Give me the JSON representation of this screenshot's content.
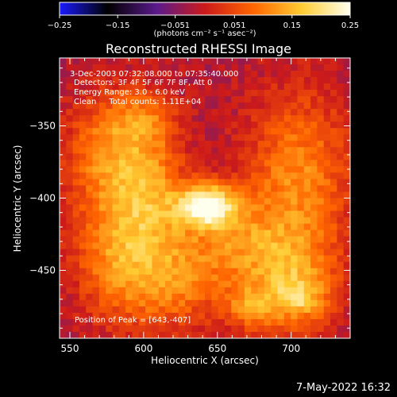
{
  "chart_data": {
    "type": "heatmap",
    "title": "Reconstructed RHESSI Image",
    "xlabel": "Heliocentric X (arcsec)",
    "ylabel": "Heliocentric Y (arcsec)",
    "xlim": [
      543,
      740
    ],
    "ylim": [
      -497,
      -303
    ],
    "x_ticks": [
      550,
      600,
      650,
      700
    ],
    "y_ticks": [
      -350,
      -400,
      -450
    ],
    "colorbar": {
      "label": "(photons cm⁻² s⁻¹ asec⁻²)",
      "range": [
        -0.25,
        0.25
      ],
      "ticks": [
        "-0.25",
        "-0.15",
        "-0.051",
        "0.051",
        "0.15",
        "0.25"
      ],
      "colors": [
        "#1a1aff",
        "#000000",
        "#5a1a8c",
        "#cc1a1a",
        "#ff6600",
        "#ffcc33",
        "#ffffee"
      ]
    },
    "annotations": [
      "3-Dec-2003 07:32:08.000 to 07:35:40.000",
      "Detectors: 3F 4F 5F 6F 7F 8F, Att 0",
      "Energy Range: 3.0 - 6.0 keV",
      "Clean     Total counts: 1.11E+04"
    ],
    "peak_label": "Position of Peak = [643,-407]",
    "peak": [
      643,
      -407
    ],
    "emission_sources": [
      {
        "x": 643,
        "y": -405,
        "amp": 0.26,
        "sx": 14,
        "sy": 10
      },
      {
        "x": 605,
        "y": -400,
        "amp": 0.13,
        "sx": 18,
        "sy": 32
      },
      {
        "x": 575,
        "y": -370,
        "amp": 0.12,
        "sx": 20,
        "sy": 30
      },
      {
        "x": 705,
        "y": -385,
        "amp": 0.13,
        "sx": 25,
        "sy": 40
      },
      {
        "x": 700,
        "y": -460,
        "amp": 0.14,
        "sx": 22,
        "sy": 25
      },
      {
        "x": 620,
        "y": -460,
        "amp": 0.11,
        "sx": 25,
        "sy": 22
      },
      {
        "x": 660,
        "y": -430,
        "amp": 0.1,
        "sx": 25,
        "sy": 20
      },
      {
        "x": 580,
        "y": -440,
        "amp": 0.11,
        "sx": 20,
        "sy": 30
      },
      {
        "x": 672,
        "y": -475,
        "amp": 0.09,
        "sx": 12,
        "sy": 10
      },
      {
        "x": 600,
        "y": -345,
        "amp": 0.08,
        "sx": 15,
        "sy": 15
      },
      {
        "x": 705,
        "y": -470,
        "amp": 0.08,
        "sx": 10,
        "sy": 8
      }
    ]
  },
  "footer": {
    "date": "7-May-2022 16:32"
  }
}
